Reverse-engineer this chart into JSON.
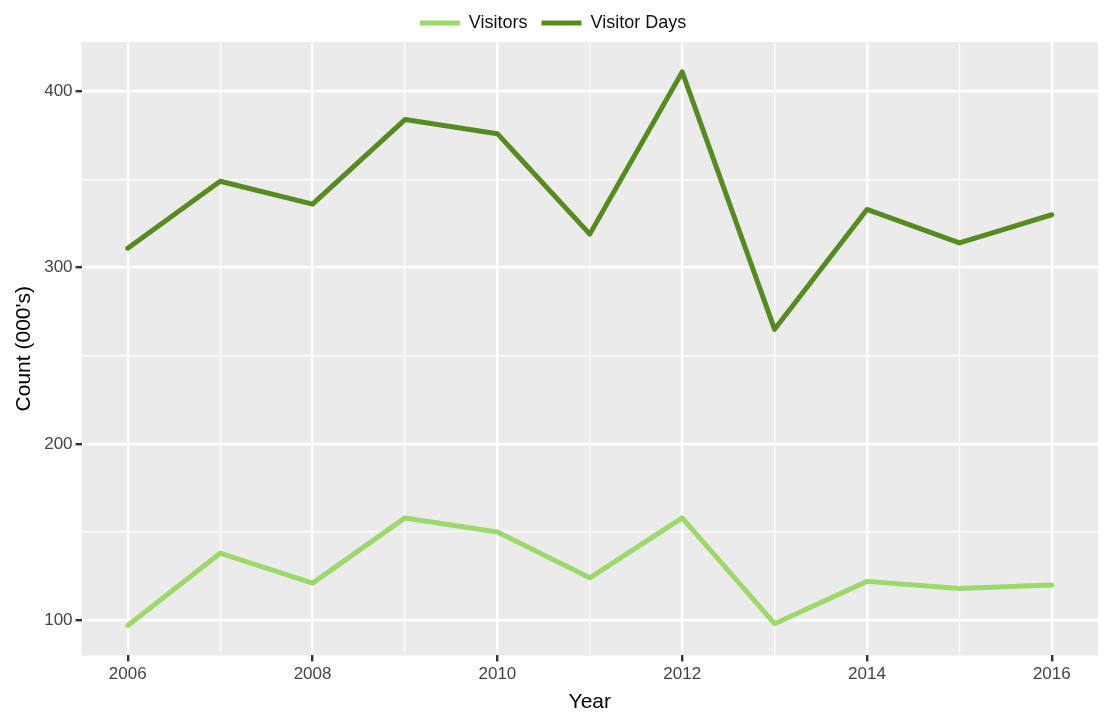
{
  "chart_data": {
    "type": "line",
    "xlabel": "Year",
    "ylabel": "Count (000's)",
    "x": [
      2006,
      2007,
      2008,
      2009,
      2010,
      2011,
      2012,
      2013,
      2014,
      2015,
      2016
    ],
    "series": [
      {
        "name": "Visitors",
        "color": "#9cd96a",
        "values": [
          97,
          138,
          121,
          158,
          150,
          124,
          158,
          98,
          122,
          118,
          120
        ]
      },
      {
        "name": "Visitor Days",
        "color": "#568c1f",
        "values": [
          311,
          349,
          336,
          384,
          376,
          319,
          411,
          265,
          333,
          314,
          330
        ]
      }
    ],
    "xlim": [
      2005.5,
      2016.5
    ],
    "ylim": [
      80,
      428
    ],
    "xticks": [
      2006,
      {
        "value": 2007,
        "label": null
      },
      2008,
      {
        "value": 2009,
        "label": null
      },
      2010,
      {
        "value": 2011,
        "label": null
      },
      2012,
      {
        "value": 2013,
        "label": null
      },
      2014,
      {
        "value": 2015,
        "label": null
      },
      2016
    ],
    "yticks": [
      100,
      {
        "value": 150,
        "label": null
      },
      200,
      {
        "value": 250,
        "label": null
      },
      300,
      {
        "value": 350,
        "label": null
      },
      400
    ],
    "grid": true,
    "legend": "top",
    "marker": "none",
    "line_style": "solid"
  }
}
